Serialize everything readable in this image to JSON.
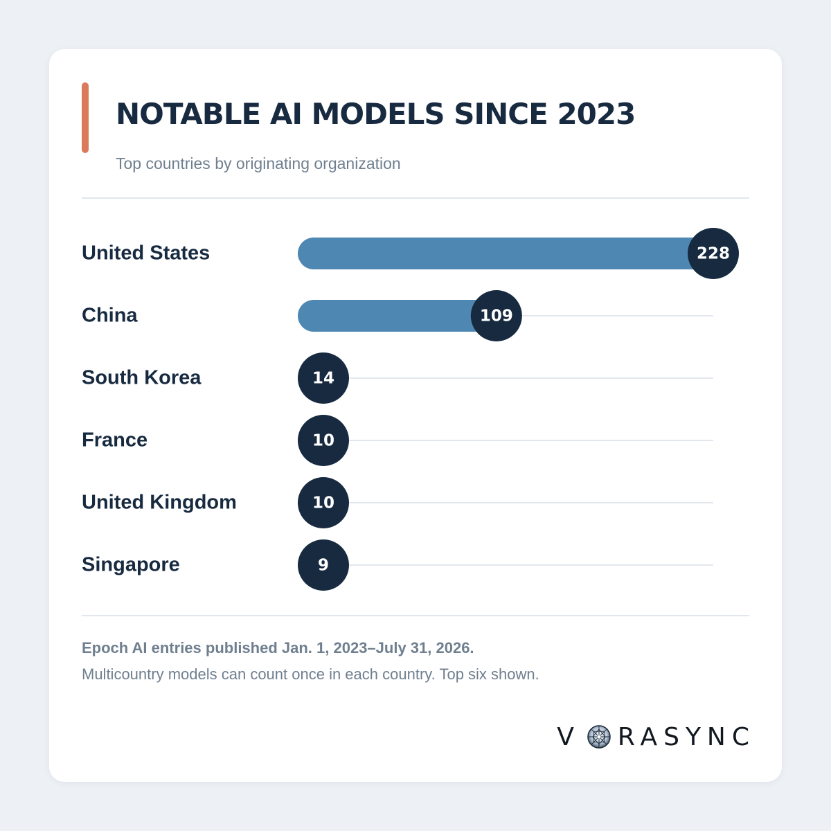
{
  "header": {
    "title": "NOTABLE AI MODELS SINCE 2023",
    "subtitle": "Top countries by originating organization"
  },
  "chart_data": {
    "type": "bar",
    "orientation": "horizontal",
    "title": "NOTABLE AI MODELS SINCE 2023",
    "subtitle": "Top countries by originating organization",
    "categories": [
      "United States",
      "China",
      "South Korea",
      "France",
      "United Kingdom",
      "Singapore"
    ],
    "values": [
      228,
      109,
      14,
      10,
      10,
      9
    ],
    "xlim": [
      0,
      228
    ],
    "grid": false,
    "legend": "none",
    "colors": {
      "bar": "#4f87b3",
      "value_marker": "#172a40",
      "track": "#e2e7ed"
    }
  },
  "footnotes": {
    "line1": "Epoch AI entries published Jan. 1, 2023–July 31, 2026.",
    "line2": "Multicountry models can count once in each country. Top six shown."
  },
  "logo": {
    "text_left": "V",
    "text_right": "RASYNC",
    "mark_icon": "starburst-circle-icon"
  },
  "colors": {
    "background": "#edf1f5",
    "card": "#ffffff",
    "accent": "#d97a5a",
    "text_primary": "#172a40",
    "text_secondary": "#6f7f8f"
  }
}
